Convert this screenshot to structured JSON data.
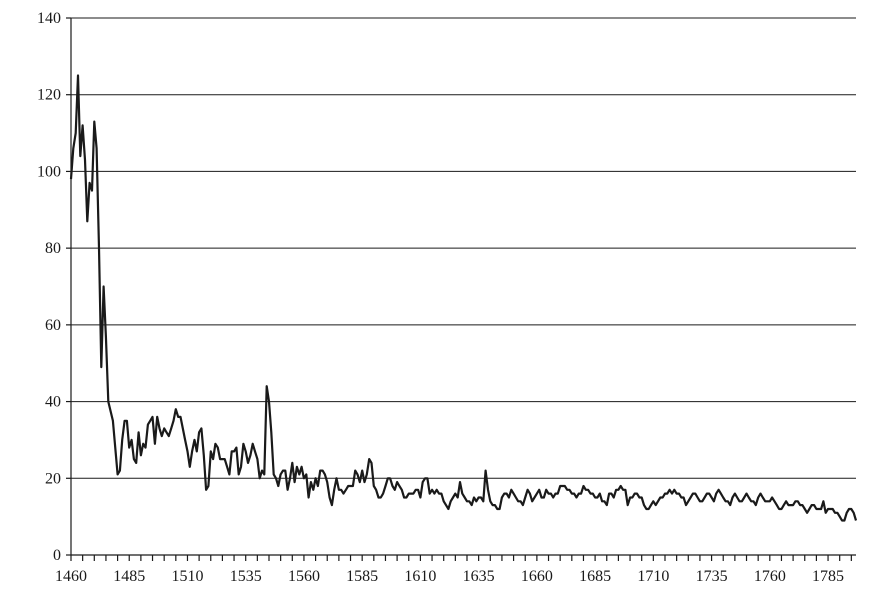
{
  "chart_data": {
    "type": "line",
    "title": "",
    "xlabel": "",
    "ylabel": "",
    "xlim": [
      1460,
      1797
    ],
    "ylim": [
      0,
      140
    ],
    "grid": "horizontal",
    "y_ticks": [
      "0",
      "20",
      "40",
      "60",
      "80",
      "100",
      "120",
      "140"
    ],
    "x_ticks": [
      "1460",
      "1485",
      "1510",
      "1535",
      "1560",
      "1585",
      "1610",
      "1635",
      "1660",
      "1685",
      "1710",
      "1735",
      "1760",
      "1785"
    ],
    "series": [
      {
        "name": "",
        "color": "#1a1a1a",
        "x": [
          1460,
          1461,
          1462,
          1463,
          1464,
          1465,
          1466,
          1467,
          1468,
          1469,
          1470,
          1471,
          1472,
          1473,
          1474,
          1475,
          1476,
          1478,
          1480,
          1481,
          1482,
          1483,
          1484,
          1485,
          1486,
          1487,
          1488,
          1489,
          1490,
          1491,
          1492,
          1493,
          1494,
          1495,
          1496,
          1497,
          1498,
          1499,
          1500,
          1501,
          1502,
          1503,
          1504,
          1505,
          1506,
          1507,
          1508,
          1509,
          1510,
          1511,
          1512,
          1513,
          1514,
          1515,
          1516,
          1517,
          1518,
          1519,
          1520,
          1521,
          1522,
          1523,
          1524,
          1525,
          1526,
          1527,
          1528,
          1529,
          1530,
          1531,
          1532,
          1533,
          1534,
          1535,
          1536,
          1537,
          1538,
          1539,
          1540,
          1541,
          1542,
          1543,
          1544,
          1545,
          1546,
          1547,
          1548,
          1549,
          1550,
          1551,
          1552,
          1553,
          1554,
          1555,
          1556,
          1557,
          1558,
          1559,
          1560,
          1561,
          1562,
          1563,
          1564,
          1565,
          1566,
          1567,
          1568,
          1569,
          1570,
          1571,
          1572,
          1573,
          1574,
          1575,
          1576,
          1577,
          1578,
          1579,
          1580,
          1581,
          1582,
          1583,
          1584,
          1585,
          1586,
          1587,
          1588,
          1589,
          1590,
          1591,
          1592,
          1593,
          1594,
          1595,
          1596,
          1597,
          1598,
          1599,
          1600,
          1601,
          1602,
          1603,
          1604,
          1605,
          1606,
          1607,
          1608,
          1609,
          1610,
          1611,
          1612,
          1613,
          1614,
          1615,
          1616,
          1617,
          1618,
          1619,
          1620,
          1621,
          1622,
          1623,
          1624,
          1625,
          1626,
          1627,
          1628,
          1629,
          1630,
          1631,
          1632,
          1633,
          1634,
          1635,
          1636,
          1637,
          1638,
          1639,
          1640,
          1641,
          1642,
          1643,
          1644,
          1645,
          1646,
          1647,
          1648,
          1649,
          1650,
          1651,
          1652,
          1653,
          1654,
          1655,
          1656,
          1657,
          1658,
          1659,
          1660,
          1661,
          1662,
          1663,
          1664,
          1665,
          1666,
          1667,
          1668,
          1669,
          1670,
          1671,
          1672,
          1673,
          1674,
          1675,
          1676,
          1677,
          1678,
          1679,
          1680,
          1681,
          1682,
          1683,
          1684,
          1685,
          1686,
          1687,
          1688,
          1689,
          1690,
          1691,
          1692,
          1693,
          1694,
          1695,
          1696,
          1697,
          1698,
          1699,
          1700,
          1701,
          1702,
          1703,
          1704,
          1705,
          1706,
          1707,
          1708,
          1709,
          1710,
          1711,
          1712,
          1713,
          1714,
          1715,
          1716,
          1717,
          1718,
          1719,
          1720,
          1721,
          1722,
          1723,
          1724,
          1725,
          1726,
          1727,
          1728,
          1729,
          1730,
          1731,
          1732,
          1733,
          1734,
          1735,
          1736,
          1737,
          1738,
          1739,
          1740,
          1741,
          1742,
          1743,
          1744,
          1745,
          1746,
          1747,
          1748,
          1749,
          1750,
          1751,
          1752,
          1753,
          1754,
          1755,
          1756,
          1757,
          1758,
          1759,
          1760,
          1761,
          1762,
          1763,
          1764,
          1765,
          1766,
          1767,
          1768,
          1769,
          1770,
          1771,
          1772,
          1773,
          1774,
          1775,
          1776,
          1777,
          1778,
          1779,
          1780,
          1781,
          1782,
          1783,
          1784,
          1785,
          1786,
          1787,
          1788,
          1789,
          1790,
          1791,
          1792,
          1793,
          1794,
          1795,
          1796,
          1797
        ],
        "values": [
          98,
          106,
          110,
          125,
          104,
          112,
          103,
          87,
          97,
          95,
          113,
          106,
          80,
          49,
          70,
          57,
          40,
          35,
          21,
          22,
          30,
          35,
          35,
          28,
          30,
          25,
          24,
          32,
          26,
          29,
          28,
          34,
          35,
          36,
          29,
          36,
          33,
          31,
          33,
          32,
          31,
          33,
          35,
          38,
          36,
          36,
          33,
          30,
          27,
          23,
          27,
          30,
          27,
          32,
          33,
          26,
          17,
          18,
          27,
          25,
          29,
          28,
          25,
          25,
          25,
          23,
          21,
          27,
          27,
          28,
          21,
          23,
          29,
          27,
          24,
          26,
          29,
          27,
          25,
          20,
          22,
          21,
          44,
          40,
          32,
          21,
          20,
          18,
          21,
          22,
          22,
          17,
          20,
          24,
          19,
          23,
          21,
          23,
          20,
          21,
          15,
          19,
          17,
          20,
          18,
          22,
          22,
          21,
          19,
          15,
          13,
          17,
          20,
          17,
          17,
          16,
          17,
          18,
          18,
          18,
          22,
          21,
          19,
          22,
          19,
          21,
          25,
          24,
          18,
          17,
          15,
          15,
          16,
          18,
          20,
          20,
          18,
          17,
          19,
          18,
          17,
          15,
          15,
          16,
          16,
          16,
          17,
          17,
          15,
          19,
          20,
          20,
          16,
          17,
          16,
          17,
          16,
          16,
          14,
          13,
          12,
          14,
          15,
          16,
          15,
          19,
          16,
          15,
          14,
          14,
          13,
          15,
          14,
          15,
          15,
          14,
          22,
          17,
          14,
          13,
          13,
          12,
          12,
          15,
          16,
          16,
          15,
          17,
          16,
          15,
          14,
          14,
          13,
          15,
          17,
          16,
          14,
          15,
          16,
          17,
          15,
          15,
          17,
          16,
          16,
          15,
          16,
          16,
          18,
          18,
          18,
          17,
          17,
          16,
          16,
          15,
          16,
          16,
          18,
          17,
          17,
          16,
          16,
          15,
          15,
          16,
          14,
          14,
          13,
          16,
          16,
          15,
          17,
          17,
          18,
          17,
          17,
          13,
          15,
          15,
          16,
          16,
          15,
          15,
          13,
          12,
          12,
          13,
          14,
          13,
          14,
          15,
          15,
          16,
          16,
          17,
          16,
          17,
          16,
          16,
          15,
          15,
          13,
          14,
          15,
          16,
          16,
          15,
          14,
          14,
          15,
          16,
          16,
          15,
          14,
          16,
          17,
          16,
          15,
          14,
          14,
          13,
          15,
          16,
          15,
          14,
          14,
          15,
          16,
          15,
          14,
          14,
          13,
          15,
          16,
          15,
          14,
          14,
          14,
          15,
          14,
          13,
          12,
          12,
          13,
          14,
          13,
          13,
          13,
          14,
          14,
          13,
          13,
          12,
          11,
          12,
          13,
          13,
          12,
          12,
          12,
          14,
          11,
          12,
          12,
          12,
          11,
          11,
          10,
          9,
          9,
          11,
          12,
          12,
          11,
          9
        ]
      }
    ]
  }
}
